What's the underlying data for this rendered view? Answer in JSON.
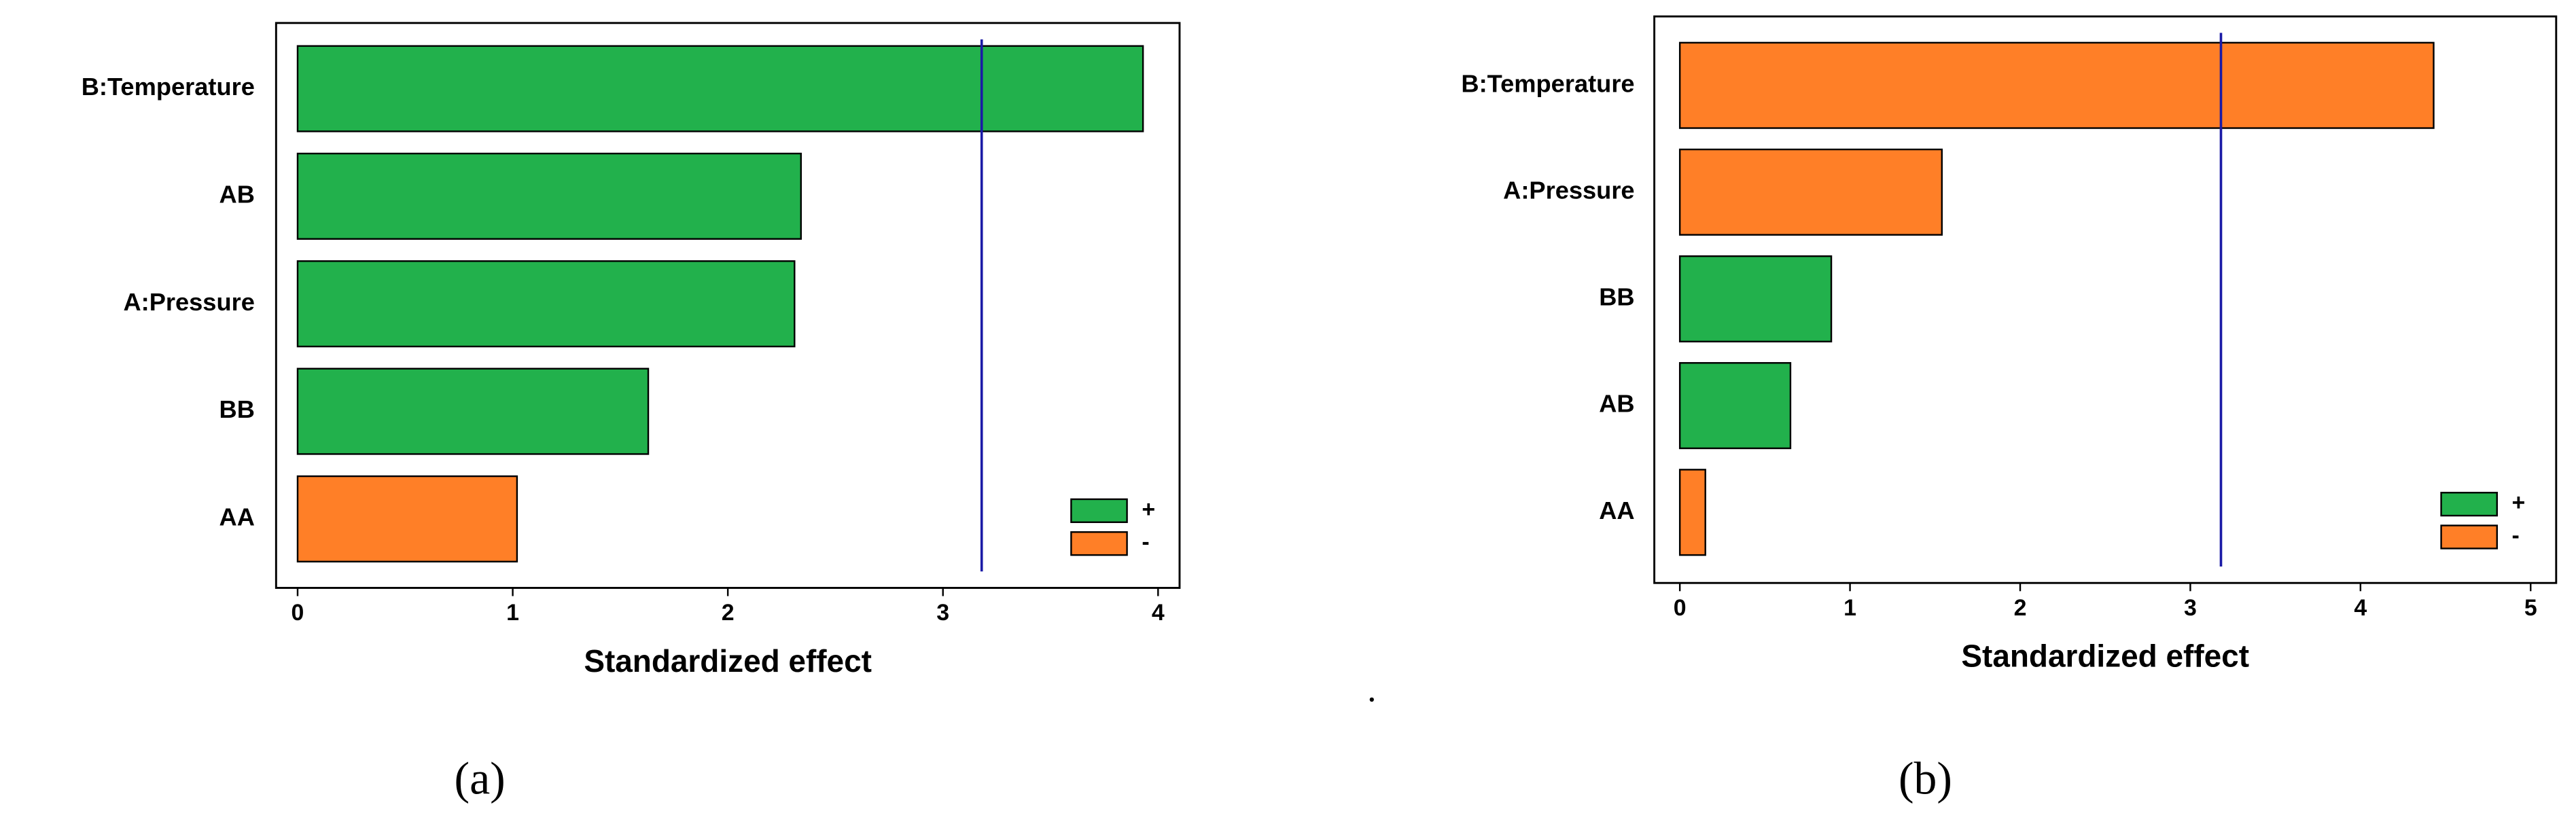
{
  "chart_data": [
    {
      "type": "bar",
      "orientation": "horizontal",
      "caption": "(a)",
      "xlabel": "Standardized effect",
      "categories": [
        "B:Temperature",
        "AB",
        "A:Pressure",
        "BB",
        "AA"
      ],
      "values": [
        3.93,
        2.34,
        2.31,
        1.63,
        1.02
      ],
      "colors": [
        "#22b14c",
        "#22b14c",
        "#22b14c",
        "#22b14c",
        "#ff7f27"
      ],
      "xlim": [
        -0.1,
        4.1
      ],
      "xticks": [
        0,
        1,
        2,
        3,
        4
      ],
      "reference_line": 3.18,
      "legend": [
        {
          "name": "+",
          "color": "#22b14c"
        },
        {
          "name": "-",
          "color": "#ff7f27"
        }
      ],
      "legend_position": "lower right"
    },
    {
      "type": "bar",
      "orientation": "horizontal",
      "caption": "(b)",
      "xlabel": "Standardized effect",
      "categories": [
        "B:Temperature",
        "A:Pressure",
        "BB",
        "AB",
        "AA"
      ],
      "values": [
        4.43,
        1.54,
        0.89,
        0.65,
        0.15
      ],
      "colors": [
        "#ff7f27",
        "#ff7f27",
        "#22b14c",
        "#22b14c",
        "#ff7f27"
      ],
      "xlim": [
        -0.15,
        5.15
      ],
      "xticks": [
        0,
        1,
        2,
        3,
        4,
        5
      ],
      "reference_line": 3.18,
      "legend": [
        {
          "name": "+",
          "color": "#22b14c"
        },
        {
          "name": "-",
          "color": "#ff7f27"
        }
      ],
      "legend_position": "lower right"
    }
  ]
}
